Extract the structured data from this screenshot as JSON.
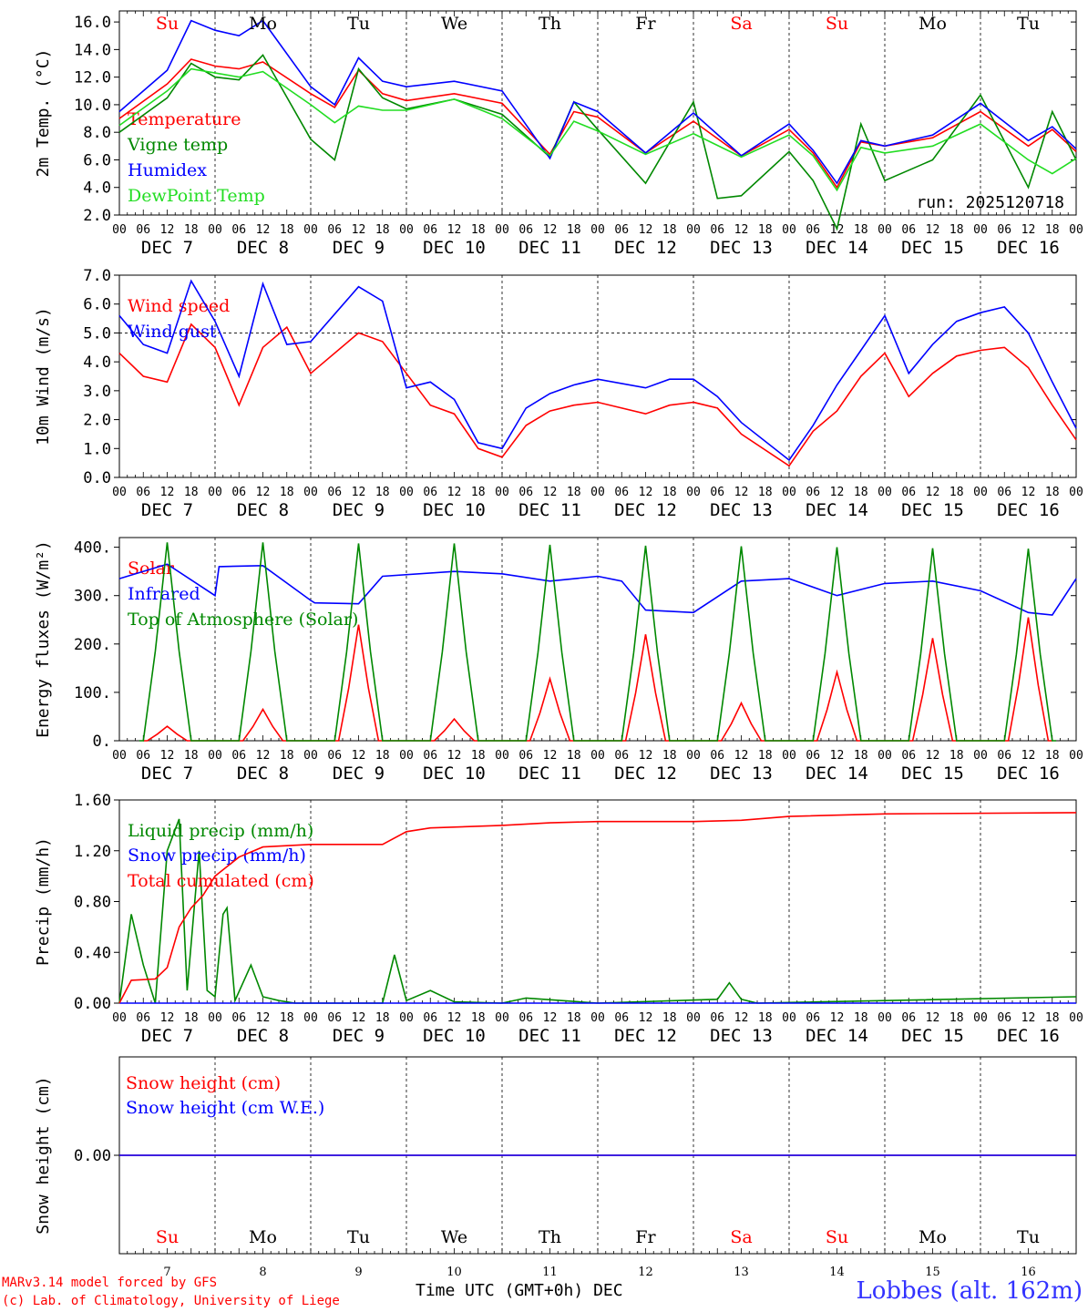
{
  "colors": {
    "red": "#ff0000",
    "green": "#008800",
    "blue": "#0000ff",
    "light_green": "#22dd22",
    "axis": "#000000",
    "weekend": "#ff0000"
  },
  "days": {
    "weekdays": [
      "Su",
      "Mo",
      "Tu",
      "We",
      "Th",
      "Fr",
      "Sa",
      "Su",
      "Mo",
      "Tu"
    ],
    "weekend_flags": [
      true,
      false,
      false,
      false,
      false,
      false,
      true,
      true,
      false,
      false
    ],
    "date_labels": [
      "DEC  7",
      "DEC  8",
      "DEC  9",
      "DEC 10",
      "DEC 11",
      "DEC 12",
      "DEC 13",
      "DEC 14",
      "DEC 15",
      "DEC 16"
    ],
    "hour_ticks": [
      "00",
      "06",
      "12",
      "18"
    ],
    "final_hour": "00",
    "day_numbers": [
      "7",
      "8",
      "9",
      "10",
      "11",
      "12",
      "13",
      "14",
      "15",
      "16"
    ]
  },
  "footer": {
    "credit_line1": "MARv3.14 model forced by GFS",
    "credit_line2": "(c) Lab. of Climatology, University of Liege",
    "xlabel": "Time UTC (GMT+0h)",
    "month": "DEC",
    "station": "Lobbes (alt. 162m)"
  },
  "chart_data": [
    {
      "type": "line",
      "ylabel": "2m Temp. (°C)",
      "ylim": [
        2.0,
        16.8
      ],
      "yticks": [
        2.0,
        4.0,
        6.0,
        8.0,
        10.0,
        12.0,
        14.0,
        16.0
      ],
      "ytick_labels": [
        "2.0",
        "4.0",
        "6.0",
        "8.0",
        "10.0",
        "12.0",
        "14.0",
        "16.0"
      ],
      "x_unit": "hours since Dec 7 00 UTC",
      "annotation": "run: 2025120718",
      "series": [
        {
          "name": "Temperature",
          "color": "#ff0000",
          "x": [
            0,
            12,
            18,
            24,
            30,
            36,
            48,
            54,
            60,
            66,
            72,
            84,
            96,
            108,
            114,
            120,
            132,
            144,
            156,
            168,
            174,
            180,
            186,
            192,
            204,
            216,
            228,
            234,
            240
          ],
          "values": [
            9.0,
            11.5,
            13.3,
            12.8,
            12.6,
            13.1,
            10.8,
            9.8,
            12.5,
            10.8,
            10.3,
            10.8,
            10.1,
            6.4,
            9.5,
            9.1,
            6.5,
            8.8,
            6.3,
            8.2,
            6.5,
            4.0,
            7.3,
            7.0,
            7.6,
            9.5,
            7.0,
            8.2,
            6.6
          ]
        },
        {
          "name": "Vigne temp",
          "color": "#008800",
          "x": [
            0,
            12,
            18,
            24,
            30,
            36,
            48,
            54,
            60,
            66,
            72,
            84,
            96,
            108,
            114,
            120,
            132,
            144,
            150,
            156,
            168,
            174,
            180,
            186,
            192,
            204,
            216,
            228,
            234,
            240
          ],
          "values": [
            8.0,
            10.5,
            13.0,
            12.0,
            11.8,
            13.6,
            7.5,
            6.0,
            12.6,
            10.5,
            9.7,
            10.4,
            9.3,
            6.2,
            10.2,
            8.2,
            4.3,
            10.2,
            3.2,
            3.4,
            6.6,
            4.5,
            1.0,
            8.6,
            4.5,
            6.0,
            10.7,
            4.0,
            9.5,
            6.0
          ]
        },
        {
          "name": "Humidex",
          "color": "#0000ff",
          "x": [
            0,
            12,
            18,
            24,
            30,
            36,
            48,
            54,
            60,
            66,
            72,
            84,
            96,
            108,
            114,
            120,
            132,
            144,
            156,
            168,
            174,
            180,
            186,
            192,
            204,
            216,
            228,
            234,
            240
          ],
          "values": [
            9.5,
            12.5,
            16.1,
            15.4,
            15.0,
            16.1,
            11.3,
            10.0,
            13.4,
            11.7,
            11.3,
            11.7,
            11.0,
            6.1,
            10.2,
            9.5,
            6.5,
            9.4,
            6.3,
            8.6,
            6.7,
            4.3,
            7.4,
            7.0,
            7.8,
            10.1,
            7.4,
            8.4,
            6.8
          ]
        },
        {
          "name": "DewPoint Temp",
          "color": "#22dd22",
          "x": [
            0,
            12,
            18,
            24,
            30,
            36,
            48,
            54,
            60,
            66,
            72,
            84,
            96,
            108,
            114,
            120,
            132,
            144,
            156,
            168,
            174,
            180,
            186,
            192,
            204,
            216,
            228,
            234,
            240
          ],
          "values": [
            8.5,
            11.0,
            12.6,
            12.3,
            12.0,
            12.4,
            10.0,
            8.7,
            9.9,
            9.6,
            9.6,
            10.4,
            9.0,
            6.3,
            8.8,
            8.1,
            6.4,
            7.9,
            6.2,
            7.8,
            6.3,
            3.8,
            6.9,
            6.5,
            7.0,
            8.6,
            6.0,
            5.0,
            6.1
          ]
        }
      ]
    },
    {
      "type": "line",
      "ylabel": "10m Wind (m/s)",
      "ylim": [
        0.0,
        7.0
      ],
      "yticks": [
        0.0,
        1.0,
        2.0,
        3.0,
        4.0,
        5.0,
        6.0,
        7.0
      ],
      "ytick_labels": [
        "0.0",
        "1.0",
        "2.0",
        "3.0",
        "4.0",
        "5.0",
        "6.0",
        "7.0"
      ],
      "x_unit": "hours since Dec 7 00 UTC",
      "reference_line": 5.0,
      "series": [
        {
          "name": "Wind speed",
          "color": "#ff0000",
          "x": [
            0,
            6,
            12,
            18,
            24,
            30,
            36,
            42,
            48,
            60,
            66,
            72,
            78,
            84,
            90,
            96,
            102,
            108,
            114,
            120,
            132,
            138,
            144,
            150,
            156,
            168,
            174,
            180,
            186,
            192,
            198,
            204,
            210,
            216,
            222,
            228,
            234,
            240
          ],
          "values": [
            4.3,
            3.5,
            3.3,
            5.3,
            4.5,
            2.5,
            4.5,
            5.2,
            3.6,
            5.0,
            4.7,
            3.6,
            2.5,
            2.2,
            1.0,
            0.7,
            1.8,
            2.3,
            2.5,
            2.6,
            2.2,
            2.5,
            2.6,
            2.4,
            1.5,
            0.4,
            1.6,
            2.3,
            3.5,
            4.3,
            2.8,
            3.6,
            4.2,
            4.4,
            4.5,
            3.8,
            2.5,
            1.3
          ]
        },
        {
          "name": "Wind gust",
          "color": "#0000ff",
          "x": [
            0,
            6,
            12,
            18,
            24,
            30,
            36,
            42,
            48,
            60,
            66,
            72,
            78,
            84,
            90,
            96,
            102,
            108,
            114,
            120,
            132,
            138,
            144,
            150,
            156,
            168,
            174,
            180,
            186,
            192,
            198,
            204,
            210,
            216,
            222,
            228,
            234,
            240
          ],
          "values": [
            5.6,
            4.6,
            4.3,
            6.8,
            5.4,
            3.5,
            6.7,
            4.6,
            4.7,
            6.6,
            6.1,
            3.1,
            3.3,
            2.7,
            1.2,
            1.0,
            2.4,
            2.9,
            3.2,
            3.4,
            3.1,
            3.4,
            3.4,
            2.8,
            1.9,
            0.6,
            1.8,
            3.2,
            4.4,
            5.6,
            3.6,
            4.6,
            5.4,
            5.7,
            5.9,
            5.0,
            3.3,
            1.7
          ]
        }
      ]
    },
    {
      "type": "line",
      "ylabel": "Energy fluxes (W/m²)",
      "ylim": [
        0,
        420
      ],
      "yticks": [
        0,
        100,
        200,
        300,
        400
      ],
      "ytick_labels": [
        "0.",
        "100.",
        "200.",
        "300.",
        "400."
      ],
      "x_unit": "hours since Dec 7 00 UTC",
      "series": [
        {
          "name": "Solar",
          "color": "#ff0000",
          "daily_peak_hour": 12,
          "daily_peak_values": [
            30,
            65,
            240,
            45,
            128,
            220,
            78,
            142,
            212,
            255
          ]
        },
        {
          "name": "Infrared",
          "color": "#0000ff",
          "x": [
            0,
            12,
            24,
            25,
            36,
            48,
            49,
            60,
            66,
            84,
            96,
            108,
            120,
            126,
            132,
            144,
            156,
            168,
            180,
            192,
            204,
            216,
            228,
            234,
            240
          ],
          "values": [
            335,
            365,
            300,
            360,
            362,
            290,
            285,
            283,
            340,
            350,
            345,
            330,
            340,
            330,
            270,
            265,
            330,
            335,
            300,
            325,
            330,
            310,
            265,
            260,
            335
          ]
        },
        {
          "name": "Top of Atmosphere (Solar)",
          "color": "#008800",
          "daily_peak_hour": 12,
          "daily_peak_values": [
            410,
            410,
            408,
            408,
            405,
            403,
            402,
            400,
            398,
            397
          ]
        }
      ]
    },
    {
      "type": "line",
      "ylabel": "Precip (mm/h)",
      "ylim": [
        0.0,
        1.6
      ],
      "yticks": [
        0.0,
        0.4,
        0.8,
        1.2,
        1.6
      ],
      "ytick_labels": [
        "0.00",
        "0.40",
        "0.80",
        "1.20",
        "1.60"
      ],
      "x_unit": "hours since Dec 7 00 UTC",
      "series": [
        {
          "name": "Liquid precip (mm/h)",
          "color": "#008800",
          "x": [
            0,
            3,
            6,
            9,
            12,
            15,
            17,
            20,
            22,
            24,
            26,
            27,
            29,
            33,
            36,
            40,
            44,
            48,
            66,
            69,
            72,
            78,
            84,
            96,
            102,
            120,
            150,
            153,
            156,
            160,
            240
          ],
          "values": [
            0.0,
            0.7,
            0.3,
            0.0,
            1.2,
            1.45,
            0.1,
            1.2,
            0.1,
            0.05,
            0.7,
            0.75,
            0.02,
            0.3,
            0.05,
            0.02,
            0.0,
            0.0,
            0.0,
            0.38,
            0.02,
            0.1,
            0.01,
            0.0,
            0.04,
            0.0,
            0.03,
            0.16,
            0.03,
            0.0,
            0.05
          ]
        },
        {
          "name": "Snow precip (mm/h)",
          "color": "#0000ff",
          "x": [
            0,
            240
          ],
          "values": [
            0.0,
            0.0
          ]
        },
        {
          "name": "Total cumulated (cm)",
          "color": "#ff0000",
          "x": [
            0,
            3,
            9,
            12,
            15,
            18,
            21,
            24,
            30,
            36,
            48,
            66,
            72,
            78,
            96,
            108,
            120,
            144,
            156,
            168,
            192,
            240
          ],
          "values": [
            0.0,
            0.18,
            0.19,
            0.28,
            0.6,
            0.75,
            0.85,
            1.0,
            1.15,
            1.23,
            1.25,
            1.25,
            1.35,
            1.38,
            1.4,
            1.42,
            1.43,
            1.43,
            1.44,
            1.47,
            1.49,
            1.5
          ]
        }
      ]
    },
    {
      "type": "line",
      "ylabel": "Snow height (cm)",
      "ylim": [
        -1.0,
        1.0
      ],
      "yticks": [
        0.0
      ],
      "ytick_labels": [
        "0.00"
      ],
      "x_unit": "hours since Dec 7 00 UTC",
      "series": [
        {
          "name": "Snow height (cm)",
          "color": "#ff0000",
          "x": [
            0,
            240
          ],
          "values": [
            0.0,
            0.0
          ]
        },
        {
          "name": "Snow height (cm W.E.)",
          "color": "#0000ff",
          "x": [
            0,
            240
          ],
          "values": [
            0.0,
            0.0
          ]
        }
      ]
    }
  ]
}
